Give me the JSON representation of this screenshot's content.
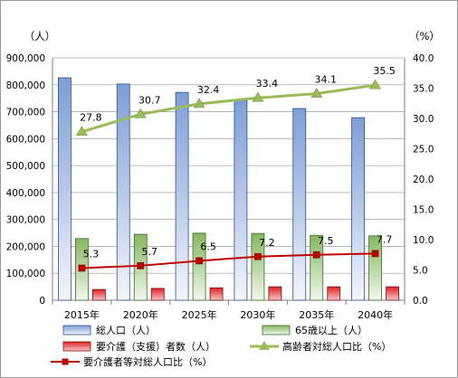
{
  "chart_data": {
    "type": "bar",
    "categories": [
      "2015年",
      "2020年",
      "2025年",
      "2030年",
      "2035年",
      "2040年"
    ],
    "y_left": {
      "unit_label": "（人）",
      "ylim": [
        0,
        900000
      ],
      "ticks": [
        "0",
        "100,000",
        "200,000",
        "300,000",
        "400,000",
        "500,000",
        "600,000",
        "700,000",
        "800,000",
        "900,000"
      ]
    },
    "y_right": {
      "unit_label": "（%）",
      "ylim": [
        0,
        40
      ],
      "ticks": [
        "0.0",
        "5.0",
        "10.0",
        "15.0",
        "20.0",
        "25.0",
        "30.0",
        "35.0",
        "40.0"
      ]
    },
    "grid": true,
    "legend_position": "bottom",
    "series": [
      {
        "name": "総人口（人）",
        "kind": "bar",
        "axis": "left",
        "color": "#8eaadb",
        "values": [
          826000,
          803000,
          772000,
          742000,
          712000,
          678000
        ]
      },
      {
        "name": "65歳以上（人）",
        "kind": "bar",
        "axis": "left",
        "color": "#8fbc6a",
        "values": [
          229000,
          245000,
          249000,
          248000,
          241000,
          239000
        ]
      },
      {
        "name": "要介護（支援）者数（人）",
        "kind": "bar",
        "axis": "left",
        "color": "#e53935",
        "values": [
          40000,
          44000,
          46000,
          50000,
          50000,
          50000
        ]
      },
      {
        "name": "高齢者対総人口比（%）",
        "kind": "line",
        "axis": "right",
        "color": "#9bbb59",
        "marker": "triangle",
        "values": [
          27.8,
          30.7,
          32.4,
          33.4,
          34.1,
          35.5
        ],
        "labels": [
          "27.8",
          "30.7",
          "32.4",
          "33.4",
          "34.1",
          "35.5"
        ]
      },
      {
        "name": "要介護者等対総人口比（%）",
        "kind": "line",
        "axis": "right",
        "color": "#c00000",
        "marker": "square",
        "values": [
          5.3,
          5.7,
          6.5,
          7.2,
          7.5,
          7.7
        ],
        "labels": [
          "5.3",
          "5.7",
          "6.5",
          "7.2",
          "7.5",
          "7.7"
        ]
      }
    ]
  }
}
